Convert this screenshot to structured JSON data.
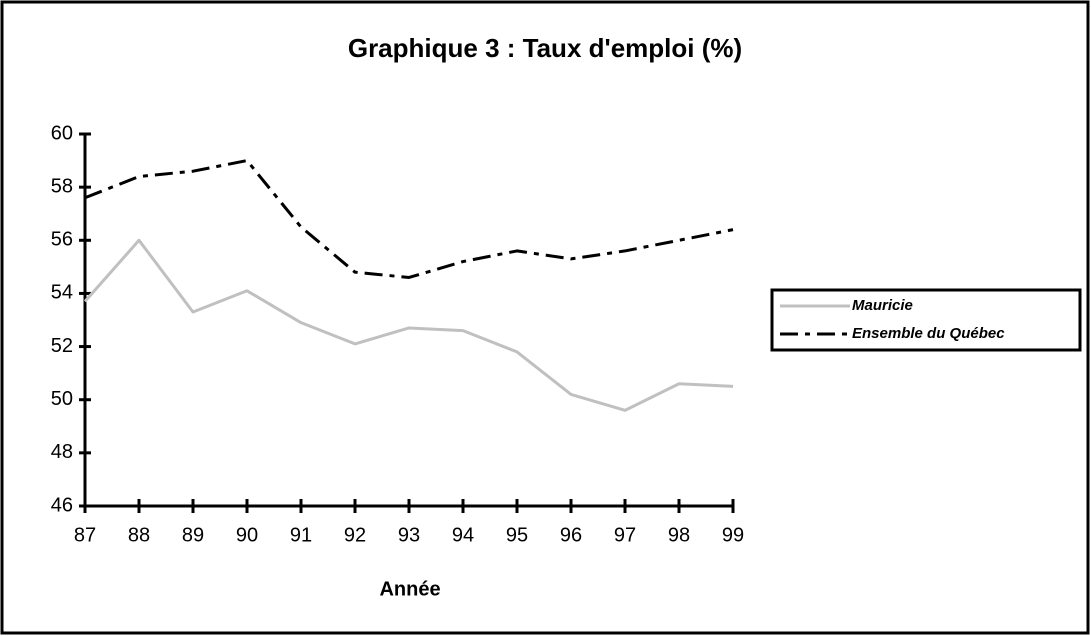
{
  "chart_data": {
    "type": "line",
    "title": "Graphique 3 : Taux d'emploi (%)",
    "x_label": "Année",
    "categories": [
      "87",
      "88",
      "89",
      "90",
      "91",
      "92",
      "93",
      "94",
      "95",
      "96",
      "97",
      "98",
      "99"
    ],
    "series": [
      {
        "name": "Mauricie",
        "color": "#c0c0c0",
        "dash": false,
        "values": [
          53.7,
          56.0,
          53.3,
          54.1,
          52.9,
          52.1,
          52.7,
          52.6,
          51.8,
          50.2,
          49.6,
          50.6,
          50.5
        ]
      },
      {
        "name": "Ensemble du Québec",
        "color": "#000000",
        "dash": true,
        "values": [
          57.6,
          58.4,
          58.6,
          59.0,
          56.5,
          54.8,
          54.6,
          55.2,
          55.6,
          55.3,
          55.6,
          56.0,
          56.4
        ]
      }
    ],
    "ylim": [
      46,
      60
    ],
    "yticks": [
      46,
      48,
      50,
      52,
      54,
      56,
      58,
      60
    ],
    "grid": false,
    "legend": "right"
  }
}
